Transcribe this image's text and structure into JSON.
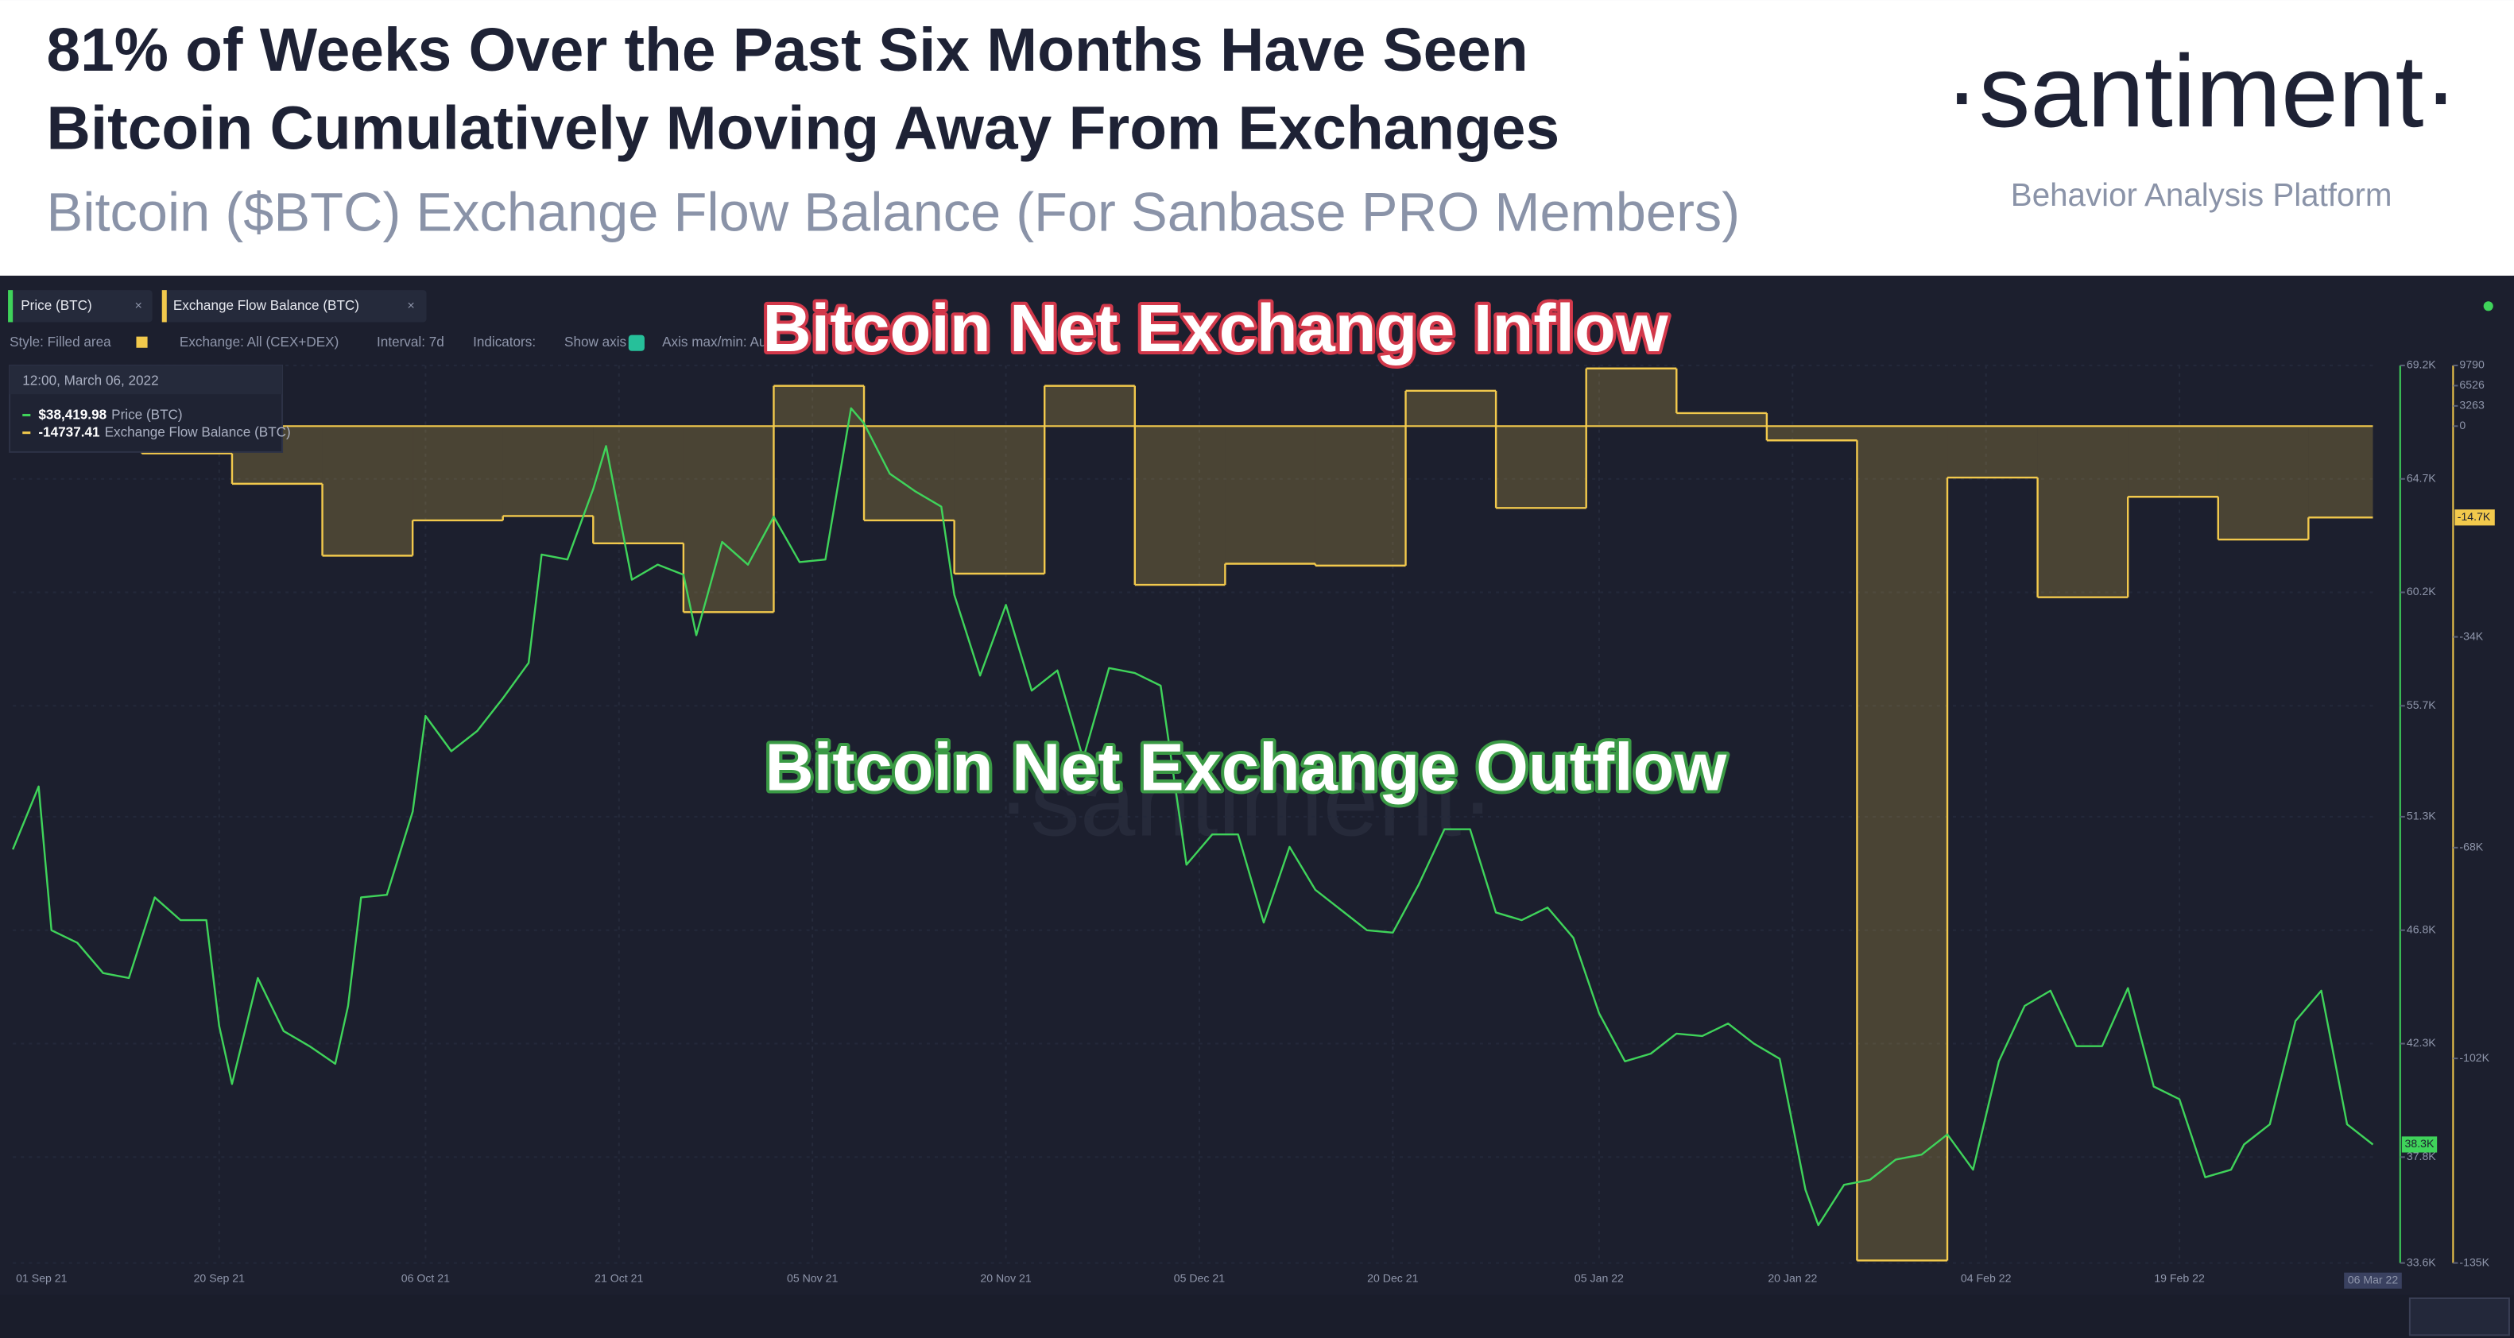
{
  "header": {
    "title_line1": "81% of Weeks Over the Past Six Months Have Seen",
    "title_line2": "Bitcoin Cumulatively Moving Away From Exchanges",
    "subtitle": "Bitcoin ($BTC) Exchange Flow Balance (For Sanbase PRO Members)",
    "brand": "·santiment·",
    "tagline": "Behavior Analysis Platform"
  },
  "toolbar": {
    "tab1": "Price (BTC)",
    "tab2": "Exchange Flow Balance (BTC)",
    "style": "Style: Filled area",
    "exchange": "Exchange: All (CEX+DEX)",
    "interval": "Interval: 7d",
    "indicators": "Indicators:",
    "show_axis": "Show axis",
    "axis_minmax": "Axis max/min: Au"
  },
  "tooltip": {
    "date": "12:00, March 06, 2022",
    "price_value": "$38,419.98",
    "price_name": "Price (BTC)",
    "flow_value": "-14737.41",
    "flow_name": "Exchange Flow Balance (BTC)"
  },
  "chart_data": {
    "type": "line",
    "annotations": {
      "inflow": "Bitcoin Net Exchange Inflow",
      "outflow": "Bitcoin Net Exchange Outflow"
    },
    "xlim": [
      "04 Sep 21",
      "06 Mar 22"
    ],
    "xticks": [
      "01 Sep 21",
      "20 Sep 21",
      "06 Oct 21",
      "21 Oct 21",
      "05 Nov 21",
      "20 Nov 21",
      "05 Dec 21",
      "20 Dec 21",
      "05 Jan 22",
      "20 Jan 22",
      "04 Feb 22",
      "19 Feb 22"
    ],
    "cursor_label": "06 Mar 22",
    "grid": true,
    "ylim": [
      33600,
      69200
    ],
    "yticks": [
      {
        "value": 69200,
        "label": "69.2K"
      },
      {
        "value": 64700,
        "label": "64.7K"
      },
      {
        "value": 60200,
        "label": "60.2K"
      },
      {
        "value": 55700,
        "label": "55.7K"
      },
      {
        "value": 51300,
        "label": "51.3K"
      },
      {
        "value": 46800,
        "label": "46.8K"
      },
      {
        "value": 42300,
        "label": "42.3K"
      },
      {
        "value": 37800,
        "label": "37.8K"
      },
      {
        "value": 33600,
        "label": "33.6K"
      }
    ],
    "y2lim": [
      -135000,
      9790
    ],
    "y2ticks": [
      9790,
      6526,
      3263,
      0,
      {
        "value": -34000,
        "label": "-34K"
      },
      {
        "value": -68000,
        "label": "-68K"
      },
      {
        "value": -102000,
        "label": "-102K"
      },
      {
        "value": -135000,
        "label": "-135K"
      }
    ],
    "series": [
      {
        "name": "Price (BTC)",
        "color": "#3fd35a",
        "badge": "38.3K",
        "x": [
          "04 Sep 21",
          "06 Sep 21",
          "07 Sep 21",
          "09 Sep 21",
          "11 Sep 21",
          "13 Sep 21",
          "15 Sep 21",
          "17 Sep 21",
          "19 Sep 21",
          "20 Sep 21",
          "21 Sep 21",
          "23 Sep 21",
          "25 Sep 21",
          "27 Sep 21",
          "29 Sep 21",
          "30 Sep 21",
          "01 Oct 21",
          "03 Oct 21",
          "05 Oct 21",
          "06 Oct 21",
          "08 Oct 21",
          "10 Oct 21",
          "12 Oct 21",
          "14 Oct 21",
          "15 Oct 21",
          "17 Oct 21",
          "19 Oct 21",
          "20 Oct 21",
          "22 Oct 21",
          "24 Oct 21",
          "26 Oct 21",
          "27 Oct 21",
          "29 Oct 21",
          "31 Oct 21",
          "02 Nov 21",
          "04 Nov 21",
          "06 Nov 21",
          "08 Nov 21",
          "09 Nov 21",
          "11 Nov 21",
          "13 Nov 21",
          "15 Nov 21",
          "16 Nov 21",
          "18 Nov 21",
          "20 Nov 21",
          "22 Nov 21",
          "24 Nov 21",
          "26 Nov 21",
          "28 Nov 21",
          "30 Nov 21",
          "02 Dec 21",
          "04 Dec 21",
          "06 Dec 21",
          "08 Dec 21",
          "10 Dec 21",
          "12 Dec 21",
          "14 Dec 21",
          "16 Dec 21",
          "18 Dec 21",
          "20 Dec 21",
          "22 Dec 21",
          "24 Dec 21",
          "26 Dec 21",
          "28 Dec 21",
          "30 Dec 21",
          "01 Jan 22",
          "03 Jan 22",
          "05 Jan 22",
          "07 Jan 22",
          "09 Jan 22",
          "11 Jan 22",
          "13 Jan 22",
          "15 Jan 22",
          "17 Jan 22",
          "19 Jan 22",
          "21 Jan 22",
          "22 Jan 22",
          "24 Jan 22",
          "26 Jan 22",
          "28 Jan 22",
          "30 Jan 22",
          "01 Feb 22",
          "03 Feb 22",
          "05 Feb 22",
          "07 Feb 22",
          "09 Feb 22",
          "11 Feb 22",
          "13 Feb 22",
          "15 Feb 22",
          "17 Feb 22",
          "19 Feb 22",
          "21 Feb 22",
          "23 Feb 22",
          "24 Feb 22",
          "26 Feb 22",
          "28 Feb 22",
          "02 Mar 22",
          "04 Mar 22",
          "06 Mar 22"
        ],
        "values": [
          50000,
          52500,
          46800,
          46300,
          45100,
          44900,
          48100,
          47200,
          47200,
          43000,
          40700,
          44900,
          42800,
          42200,
          41500,
          43800,
          48100,
          48200,
          51500,
          55300,
          53900,
          54700,
          56000,
          57400,
          61700,
          61500,
          64300,
          66000,
          60700,
          61300,
          60900,
          58500,
          62200,
          61300,
          63200,
          61400,
          61500,
          67500,
          66900,
          64900,
          64200,
          63600,
          60100,
          56900,
          59700,
          56300,
          57100,
          53600,
          57200,
          57000,
          56500,
          49400,
          50600,
          50600,
          47100,
          50100,
          48400,
          47600,
          46800,
          46700,
          48600,
          50800,
          50800,
          47500,
          47200,
          47700,
          46500,
          43500,
          41600,
          41900,
          42700,
          42600,
          43100,
          42300,
          41700,
          36500,
          35100,
          36700,
          36900,
          37700,
          37900,
          38700,
          37300,
          41600,
          43800,
          44400,
          42200,
          42200,
          44500,
          40600,
          40100,
          37000,
          37300,
          38300,
          39100,
          43200,
          44400,
          39100,
          38300
        ]
      },
      {
        "name": "Exchange Flow Balance (BTC)",
        "color": "#f2c94c",
        "axis": "y2",
        "badge": "-14.7K",
        "x": [
          "14 Sep 21",
          "21 Sep 21",
          "28 Sep 21",
          "05 Oct 21",
          "12 Oct 21",
          "19 Oct 21",
          "26 Oct 21",
          "02 Nov 21",
          "09 Nov 21",
          "16 Nov 21",
          "23 Nov 21",
          "30 Nov 21",
          "07 Dec 21",
          "14 Dec 21",
          "21 Dec 21",
          "28 Dec 21",
          "04 Jan 22",
          "11 Jan 22",
          "18 Jan 22",
          "25 Jan 22",
          "01 Feb 22",
          "08 Feb 22",
          "15 Feb 22",
          "22 Feb 22",
          "01 Mar 22"
        ],
        "values": [
          -4400,
          -9300,
          -20900,
          -15200,
          -14500,
          -18900,
          -30000,
          6500,
          -15200,
          -23800,
          6500,
          -25600,
          -22200,
          -22500,
          5700,
          -13200,
          9300,
          2100,
          -2300,
          -134600,
          -8300,
          -27600,
          -11400,
          -18300,
          -14737.41
        ]
      }
    ]
  }
}
